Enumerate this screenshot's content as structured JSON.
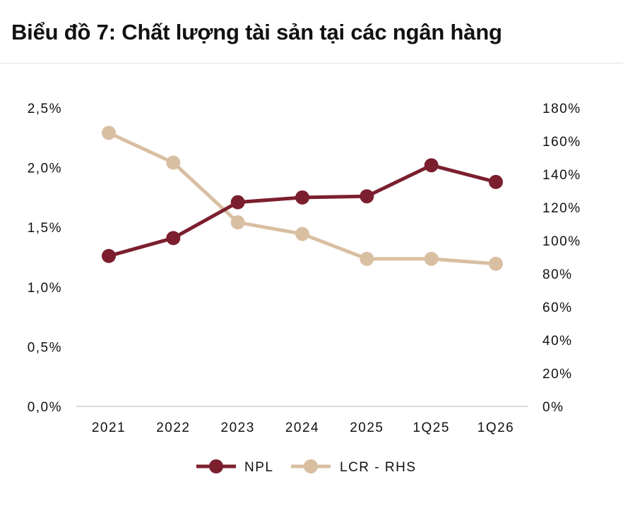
{
  "title": "Biểu đồ 7: Chất lượng tài sản tại các ngân hàng",
  "colors": {
    "npl": "#7b1f2e",
    "lcr": "#d9bfa2",
    "axis": "#d0d0d0",
    "text": "#111111"
  },
  "chart_data": {
    "type": "line",
    "title": "Biểu đồ 7: Chất lượng tài sản tại các ngân hàng",
    "categories": [
      "2021",
      "2022",
      "2023",
      "2024",
      "2025",
      "1Q25",
      "1Q26"
    ],
    "y_left": {
      "min": 0,
      "max": 2.5,
      "ticks": [
        0,
        0.5,
        1.0,
        1.5,
        2.0,
        2.5
      ],
      "tick_labels": [
        "0,0%",
        "0,5%",
        "1,0%",
        "1,5%",
        "2,0%",
        "2,5%"
      ]
    },
    "y_right": {
      "min": 0,
      "max": 180,
      "ticks": [
        0,
        20,
        40,
        60,
        80,
        100,
        120,
        140,
        160,
        180
      ],
      "tick_labels": [
        "0%",
        "20%",
        "40%",
        "60%",
        "80%",
        "100%",
        "120%",
        "140%",
        "160%",
        "180%"
      ]
    },
    "series": [
      {
        "name": "NPL",
        "axis": "left",
        "color": "#7b1f2e",
        "values": [
          1.26,
          1.41,
          1.71,
          1.75,
          1.76,
          2.02,
          1.88
        ]
      },
      {
        "name": "LCR - RHS",
        "axis": "right",
        "color": "#d9bfa2",
        "values": [
          165,
          147,
          111,
          104,
          89,
          89,
          86
        ]
      }
    ],
    "grid": false,
    "legend": "bottom"
  }
}
